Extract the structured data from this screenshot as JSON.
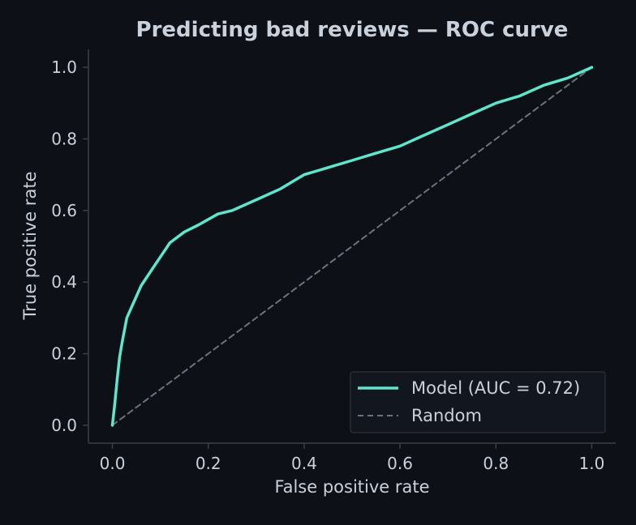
{
  "chart_data": {
    "type": "line",
    "title": "Predicting bad reviews — ROC curve",
    "xlabel": "False positive rate",
    "ylabel": "True positive rate",
    "xlim": [
      -0.05,
      1.05
    ],
    "ylim": [
      -0.05,
      1.05
    ],
    "x_ticks": [
      0.0,
      0.2,
      0.4,
      0.6,
      0.8,
      1.0
    ],
    "y_ticks": [
      0.0,
      0.2,
      0.4,
      0.6,
      0.8,
      1.0
    ],
    "x_tick_labels": [
      "0.0",
      "0.2",
      "0.4",
      "0.6",
      "0.8",
      "1.0"
    ],
    "y_tick_labels": [
      "0.0",
      "0.2",
      "0.4",
      "0.6",
      "0.8",
      "1.0"
    ],
    "grid": false,
    "legend_position": "lower-right",
    "series": [
      {
        "name": "Model (AUC = 0.72)",
        "style": "solid",
        "color": "#5ee6cc",
        "x": [
          0.0,
          0.005,
          0.01,
          0.015,
          0.02,
          0.03,
          0.04,
          0.05,
          0.06,
          0.08,
          0.1,
          0.12,
          0.15,
          0.18,
          0.22,
          0.25,
          0.3,
          0.35,
          0.4,
          0.45,
          0.5,
          0.55,
          0.6,
          0.65,
          0.7,
          0.75,
          0.8,
          0.85,
          0.9,
          0.95,
          1.0
        ],
        "y": [
          0.0,
          0.06,
          0.13,
          0.19,
          0.23,
          0.3,
          0.33,
          0.36,
          0.39,
          0.43,
          0.47,
          0.51,
          0.54,
          0.56,
          0.59,
          0.6,
          0.63,
          0.66,
          0.7,
          0.72,
          0.74,
          0.76,
          0.78,
          0.81,
          0.84,
          0.87,
          0.9,
          0.92,
          0.95,
          0.97,
          1.0
        ]
      },
      {
        "name": "Random",
        "style": "dashed",
        "color": "#6b7280",
        "x": [
          0.0,
          1.0
        ],
        "y": [
          0.0,
          1.0
        ]
      }
    ]
  },
  "colors": {
    "background": "#0d1017",
    "text": "#c9d1dc",
    "axis": "#3a3f4a",
    "legend_bg": "#12161f",
    "legend_border": "#2d323c"
  }
}
